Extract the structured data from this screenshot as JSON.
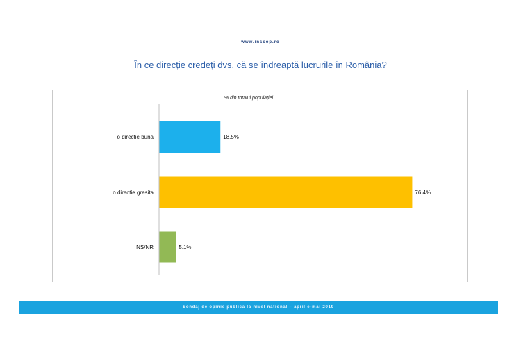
{
  "header": {
    "site": "www.inscop.ro"
  },
  "footer": {
    "text": "Sondaj de opinie publică la nivel național – aprilie-mai 2019"
  },
  "colors": {
    "title": "#2a5da8",
    "footer": "#1aa3df"
  },
  "chart_data": {
    "type": "bar",
    "orientation": "horizontal",
    "title": "În ce direcție credeți dvs. că se îndreaptă lucrurile în România?",
    "subtitle": "% din totalul populației",
    "categories": [
      "o directie buna",
      "o directie gresita",
      "NS/NR"
    ],
    "values": [
      18.5,
      76.4,
      5.1
    ],
    "value_labels": [
      "18.5%",
      "76.4%",
      "5.1%"
    ],
    "colors": [
      "#1cb0ec",
      "#fec000",
      "#92b955"
    ],
    "xlim": [
      0,
      100
    ],
    "grid": false,
    "legend": "none"
  }
}
